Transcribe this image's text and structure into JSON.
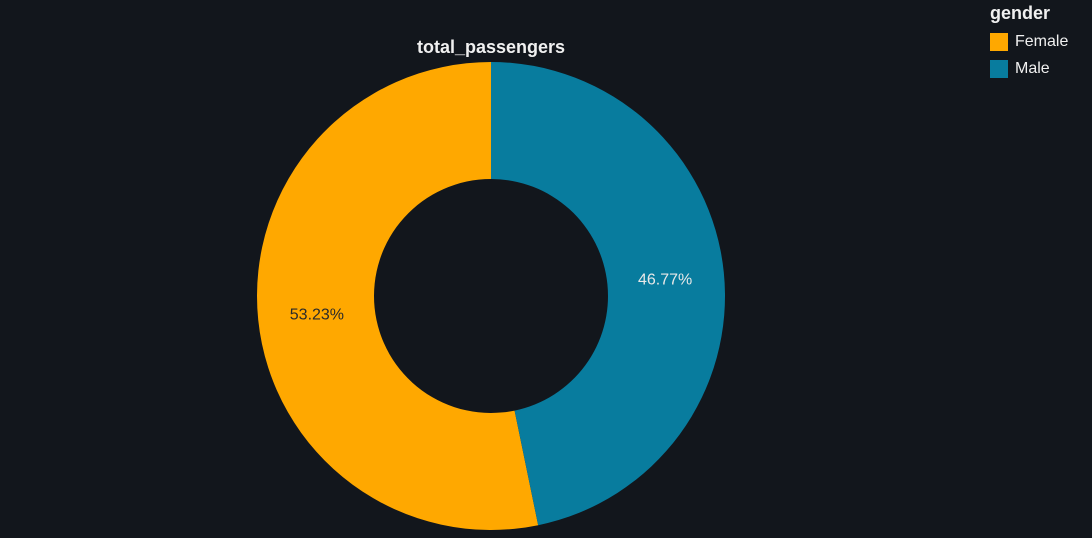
{
  "chart_data": {
    "type": "pie",
    "hole": true,
    "title": "total_passengers",
    "legend_title": "gender",
    "legend_position": "top-right",
    "slices": [
      {
        "label": "Female",
        "value": 53.23,
        "text": "53.23%",
        "color": "#FFA800",
        "text_color": "#2a2a2a"
      },
      {
        "label": "Male",
        "value": 46.77,
        "text": "46.77%",
        "color": "#087C9E",
        "text_color": "#e8e8e8"
      }
    ]
  }
}
